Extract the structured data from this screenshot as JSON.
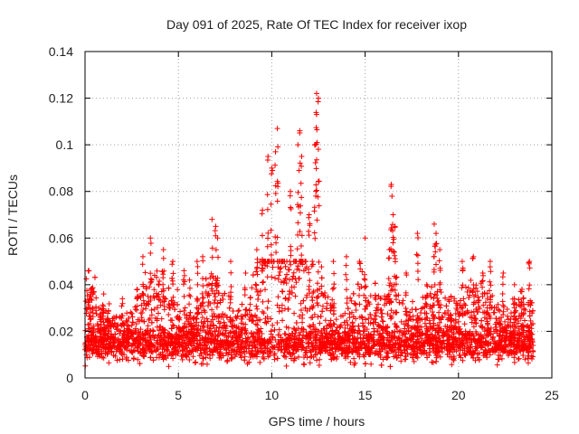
{
  "chart_data": {
    "type": "scatter",
    "title": "Day 091 of 2025, Rate Of TEC Index for receiver ixop",
    "xlabel": "GPS time / hours",
    "ylabel": "ROTI / TECUs",
    "xlim": [
      0,
      25
    ],
    "ylim": [
      0,
      0.14
    ],
    "x_ticks": [
      0,
      5,
      10,
      15,
      20,
      25
    ],
    "y_ticks": [
      0,
      0.02,
      0.04,
      0.06,
      0.08,
      0.1,
      0.12,
      0.14
    ],
    "x_tick_labels": [
      "0",
      "5",
      "10",
      "15",
      "20",
      "25"
    ],
    "y_tick_labels": [
      "0",
      "0.02",
      "0.04",
      "0.06",
      "0.08",
      "0.1",
      "0.12",
      "0.14"
    ],
    "grid": true,
    "marker": "+",
    "color": "#ff0000",
    "series": [
      {
        "name": "ROTI",
        "x_start": 0.0,
        "x_end": 24.0,
        "baseline_typical": 0.013,
        "notable_points": [
          {
            "x": 0.2,
            "y": 0.046
          },
          {
            "x": 0.3,
            "y": 0.038
          },
          {
            "x": 1.0,
            "y": 0.036
          },
          {
            "x": 2.0,
            "y": 0.034
          },
          {
            "x": 2.8,
            "y": 0.038
          },
          {
            "x": 3.1,
            "y": 0.052
          },
          {
            "x": 3.5,
            "y": 0.06
          },
          {
            "x": 4.2,
            "y": 0.055
          },
          {
            "x": 4.7,
            "y": 0.05
          },
          {
            "x": 5.3,
            "y": 0.046
          },
          {
            "x": 5.6,
            "y": 0.042
          },
          {
            "x": 6.0,
            "y": 0.05
          },
          {
            "x": 6.3,
            "y": 0.052
          },
          {
            "x": 6.8,
            "y": 0.068
          },
          {
            "x": 7.0,
            "y": 0.065
          },
          {
            "x": 7.1,
            "y": 0.06
          },
          {
            "x": 7.8,
            "y": 0.05
          },
          {
            "x": 8.6,
            "y": 0.045
          },
          {
            "x": 9.2,
            "y": 0.055
          },
          {
            "x": 9.5,
            "y": 0.072
          },
          {
            "x": 9.8,
            "y": 0.095
          },
          {
            "x": 10.0,
            "y": 0.09
          },
          {
            "x": 10.2,
            "y": 0.097
          },
          {
            "x": 10.3,
            "y": 0.107
          },
          {
            "x": 11.0,
            "y": 0.08
          },
          {
            "x": 11.4,
            "y": 0.1
          },
          {
            "x": 11.5,
            "y": 0.106
          },
          {
            "x": 11.6,
            "y": 0.095
          },
          {
            "x": 12.0,
            "y": 0.07
          },
          {
            "x": 12.3,
            "y": 0.1
          },
          {
            "x": 12.4,
            "y": 0.113
          },
          {
            "x": 12.4,
            "y": 0.122
          },
          {
            "x": 12.5,
            "y": 0.12
          },
          {
            "x": 13.3,
            "y": 0.05
          },
          {
            "x": 14.0,
            "y": 0.052
          },
          {
            "x": 14.7,
            "y": 0.05
          },
          {
            "x": 15.0,
            "y": 0.06
          },
          {
            "x": 16.3,
            "y": 0.055
          },
          {
            "x": 16.4,
            "y": 0.083
          },
          {
            "x": 16.5,
            "y": 0.07
          },
          {
            "x": 16.6,
            "y": 0.065
          },
          {
            "x": 17.2,
            "y": 0.045
          },
          {
            "x": 17.8,
            "y": 0.062
          },
          {
            "x": 18.3,
            "y": 0.04
          },
          {
            "x": 18.7,
            "y": 0.066
          },
          {
            "x": 18.8,
            "y": 0.062
          },
          {
            "x": 19.0,
            "y": 0.055
          },
          {
            "x": 19.6,
            "y": 0.035
          },
          {
            "x": 20.2,
            "y": 0.05
          },
          {
            "x": 20.8,
            "y": 0.052
          },
          {
            "x": 21.3,
            "y": 0.045
          },
          {
            "x": 21.7,
            "y": 0.05
          },
          {
            "x": 22.4,
            "y": 0.045
          },
          {
            "x": 23.0,
            "y": 0.04
          },
          {
            "x": 23.4,
            "y": 0.038
          },
          {
            "x": 23.8,
            "y": 0.05
          }
        ]
      }
    ]
  }
}
